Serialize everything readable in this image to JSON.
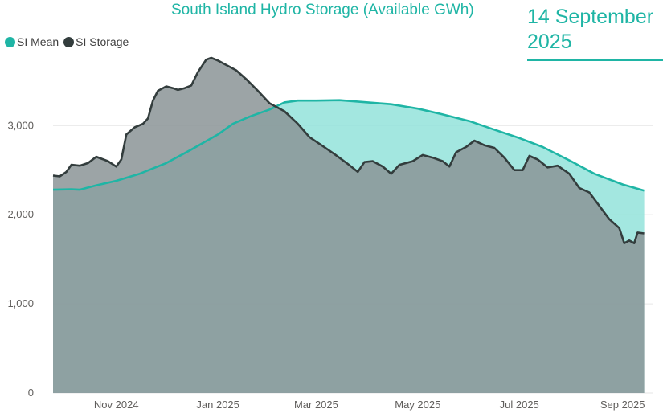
{
  "header": {
    "date_card": "14 September 2025"
  },
  "chart_data": {
    "type": "area",
    "title": "South Island Hydro Storage (Available GWh)",
    "xlabel": "",
    "ylabel": "",
    "ylim": [
      0,
      3850
    ],
    "xlim": [
      "2024-09-24",
      "2025-09-19"
    ],
    "yticks": [
      0,
      1000,
      2000,
      3000
    ],
    "ytick_labels": [
      "0",
      "1,000",
      "2,000",
      "3,000"
    ],
    "xticks": [
      "2024-11-01",
      "2025-01-01",
      "2025-03-01",
      "2025-05-01",
      "2025-07-01",
      "2025-09-01"
    ],
    "xtick_labels": [
      "Nov 2024",
      "Jan 2025",
      "Mar 2025",
      "May 2025",
      "Jul 2025",
      "Sep 2025"
    ],
    "grid": true,
    "legend_position": "top-left",
    "series": [
      {
        "name": "SI Mean",
        "color": "#1fb5a5",
        "fill": "#93e3da",
        "points": [
          [
            "2024-09-24",
            2280
          ],
          [
            "2024-10-05",
            2285
          ],
          [
            "2024-10-10",
            2280
          ],
          [
            "2024-10-20",
            2330
          ],
          [
            "2024-11-01",
            2380
          ],
          [
            "2024-11-15",
            2460
          ],
          [
            "2024-12-01",
            2580
          ],
          [
            "2024-12-15",
            2720
          ],
          [
            "2025-01-01",
            2900
          ],
          [
            "2025-01-10",
            3020
          ],
          [
            "2025-01-20",
            3100
          ],
          [
            "2025-02-01",
            3180
          ],
          [
            "2025-02-10",
            3260
          ],
          [
            "2025-02-18",
            3280
          ],
          [
            "2025-03-01",
            3280
          ],
          [
            "2025-03-15",
            3285
          ],
          [
            "2025-04-01",
            3260
          ],
          [
            "2025-04-15",
            3240
          ],
          [
            "2025-05-01",
            3190
          ],
          [
            "2025-05-15",
            3130
          ],
          [
            "2025-06-01",
            3050
          ],
          [
            "2025-06-15",
            2960
          ],
          [
            "2025-07-01",
            2860
          ],
          [
            "2025-07-15",
            2760
          ],
          [
            "2025-08-01",
            2600
          ],
          [
            "2025-08-15",
            2460
          ],
          [
            "2025-09-01",
            2340
          ],
          [
            "2025-09-14",
            2270
          ]
        ]
      },
      {
        "name": "SI Storage",
        "color": "#333d3d",
        "fill": "#8b9496",
        "points": [
          [
            "2024-09-24",
            2440
          ],
          [
            "2024-09-28",
            2430
          ],
          [
            "2024-10-02",
            2480
          ],
          [
            "2024-10-05",
            2560
          ],
          [
            "2024-10-10",
            2550
          ],
          [
            "2024-10-15",
            2580
          ],
          [
            "2024-10-20",
            2650
          ],
          [
            "2024-10-27",
            2600
          ],
          [
            "2024-11-01",
            2540
          ],
          [
            "2024-11-04",
            2620
          ],
          [
            "2024-11-07",
            2900
          ],
          [
            "2024-11-12",
            2980
          ],
          [
            "2024-11-17",
            3020
          ],
          [
            "2024-11-20",
            3080
          ],
          [
            "2024-11-23",
            3280
          ],
          [
            "2024-11-26",
            3390
          ],
          [
            "2024-12-01",
            3440
          ],
          [
            "2024-12-05",
            3420
          ],
          [
            "2024-12-08",
            3400
          ],
          [
            "2024-12-12",
            3420
          ],
          [
            "2024-12-16",
            3450
          ],
          [
            "2024-12-20",
            3600
          ],
          [
            "2024-12-25",
            3740
          ],
          [
            "2024-12-28",
            3760
          ],
          [
            "2025-01-01",
            3730
          ],
          [
            "2025-01-06",
            3680
          ],
          [
            "2025-01-12",
            3620
          ],
          [
            "2025-01-18",
            3520
          ],
          [
            "2025-01-25",
            3390
          ],
          [
            "2025-02-01",
            3250
          ],
          [
            "2025-02-10",
            3160
          ],
          [
            "2025-02-18",
            3020
          ],
          [
            "2025-02-25",
            2870
          ],
          [
            "2025-03-05",
            2770
          ],
          [
            "2025-03-12",
            2680
          ],
          [
            "2025-03-20",
            2570
          ],
          [
            "2025-03-26",
            2480
          ],
          [
            "2025-03-30",
            2590
          ],
          [
            "2025-04-04",
            2600
          ],
          [
            "2025-04-10",
            2540
          ],
          [
            "2025-04-15",
            2460
          ],
          [
            "2025-04-20",
            2560
          ],
          [
            "2025-04-28",
            2600
          ],
          [
            "2025-05-04",
            2670
          ],
          [
            "2025-05-10",
            2640
          ],
          [
            "2025-05-16",
            2600
          ],
          [
            "2025-05-20",
            2540
          ],
          [
            "2025-05-24",
            2700
          ],
          [
            "2025-05-30",
            2760
          ],
          [
            "2025-06-04",
            2830
          ],
          [
            "2025-06-10",
            2780
          ],
          [
            "2025-06-16",
            2750
          ],
          [
            "2025-06-22",
            2640
          ],
          [
            "2025-06-28",
            2500
          ],
          [
            "2025-07-03",
            2500
          ],
          [
            "2025-07-07",
            2660
          ],
          [
            "2025-07-12",
            2620
          ],
          [
            "2025-07-18",
            2530
          ],
          [
            "2025-07-24",
            2550
          ],
          [
            "2025-07-31",
            2460
          ],
          [
            "2025-08-06",
            2300
          ],
          [
            "2025-08-12",
            2250
          ],
          [
            "2025-08-18",
            2100
          ],
          [
            "2025-08-24",
            1950
          ],
          [
            "2025-08-30",
            1850
          ],
          [
            "2025-09-02",
            1680
          ],
          [
            "2025-09-05",
            1710
          ],
          [
            "2025-09-08",
            1680
          ],
          [
            "2025-09-10",
            1800
          ],
          [
            "2025-09-14",
            1790
          ]
        ]
      }
    ]
  }
}
